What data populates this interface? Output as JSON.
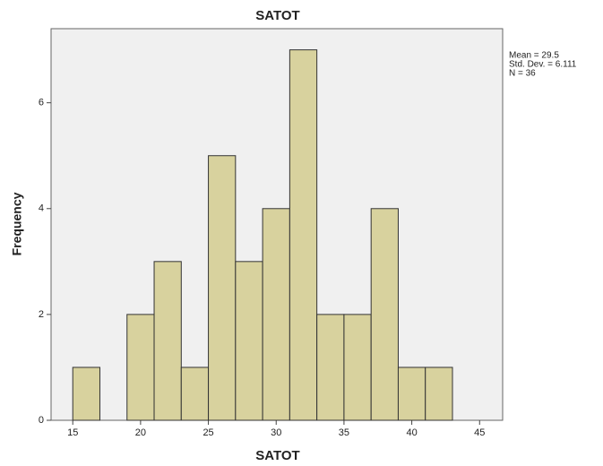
{
  "chart_data": {
    "type": "histogram",
    "title": "SATOT",
    "x_label": "SATOT",
    "y_label": "Frequency",
    "bins": [
      15,
      17,
      19,
      21,
      23,
      25,
      27,
      29,
      31,
      33,
      35,
      37,
      39,
      41,
      43
    ],
    "counts": [
      1,
      0,
      2,
      3,
      1,
      5,
      3,
      4,
      7,
      2,
      2,
      4,
      1,
      1
    ],
    "color": "#d8d29e",
    "xlim": [
      13.4,
      46.7
    ],
    "xticks": [
      15,
      20,
      25,
      30,
      35,
      40,
      45
    ],
    "ylim": [
      0,
      7.4
    ],
    "yticks": [
      0,
      2,
      4,
      6
    ],
    "stats": [
      "Mean = 29.5",
      "Std. Dev. = 6.111",
      "N = 36"
    ]
  }
}
